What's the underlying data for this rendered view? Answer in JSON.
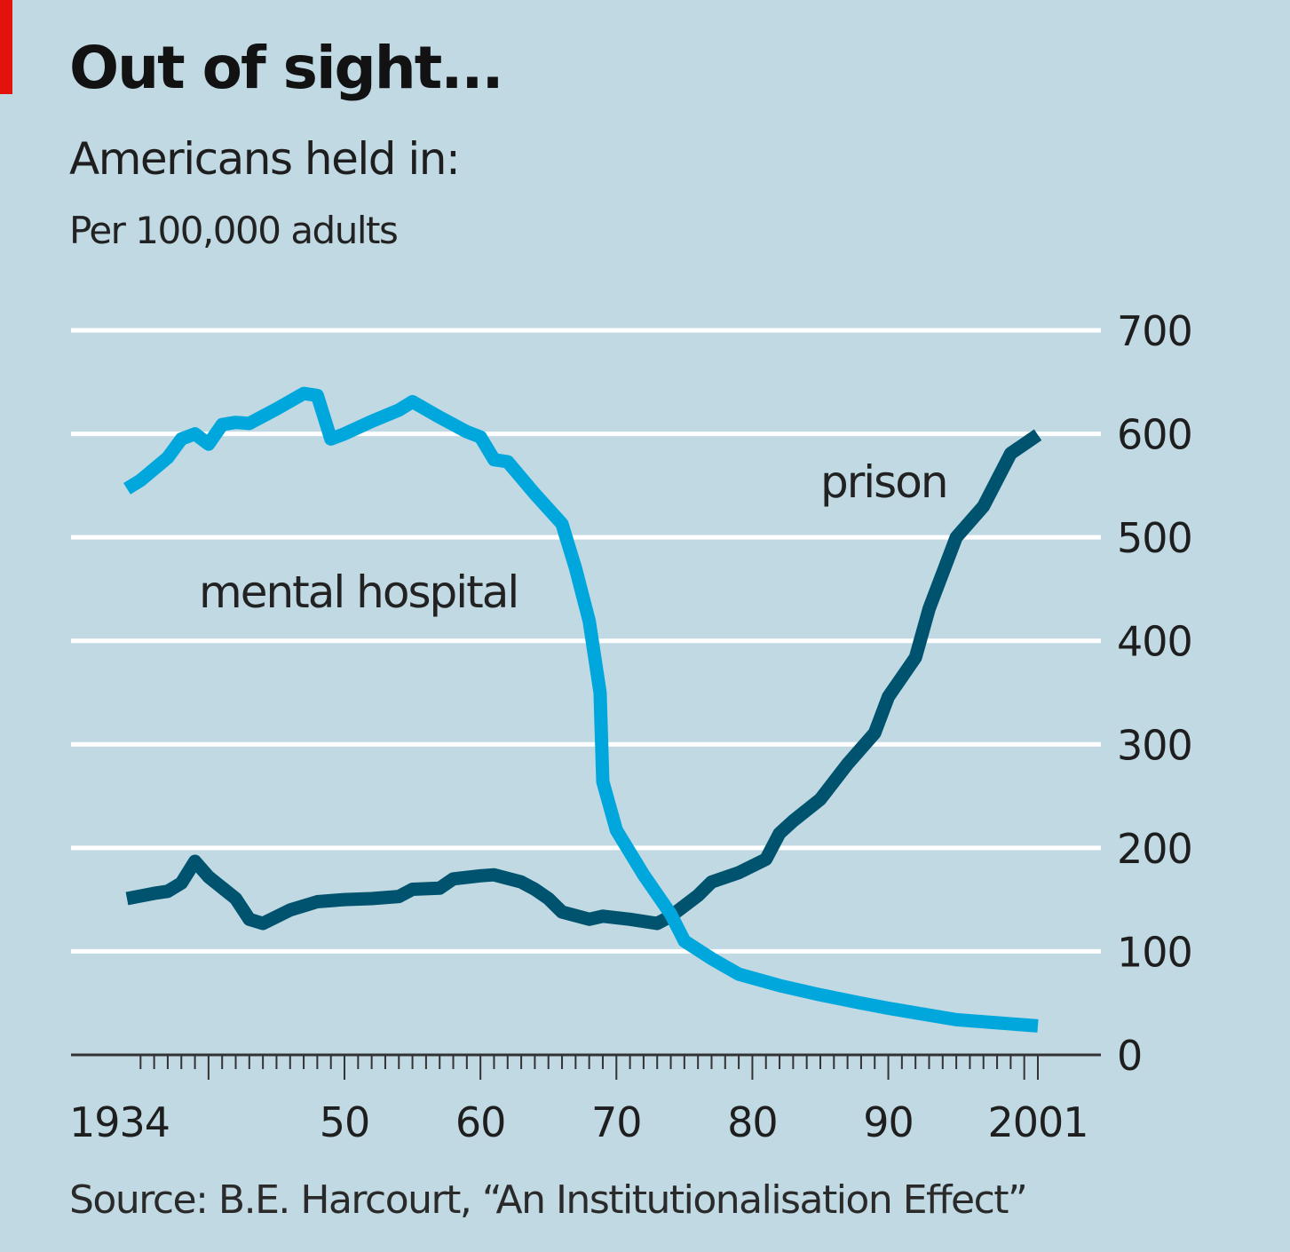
{
  "header": {
    "title": "Out of sight...",
    "subtitle": "Americans held in:",
    "unit": "Per 100,000 adults"
  },
  "footer": {
    "source": "Source: B.E. Harcourt, “An Institutionalisation Effect”"
  },
  "colors": {
    "background": "#c0d9e3",
    "gridline": "#ffffff",
    "accent_red": "#e3120b",
    "mental_hospital": "#00a7dc",
    "prison": "#00536e"
  },
  "chart_data": {
    "type": "line",
    "title": "Out of sight...",
    "subtitle": "Americans held in: Per 100,000 adults",
    "xlabel": "",
    "ylabel": "Per 100,000 adults",
    "xlim": [
      1934,
      2001
    ],
    "ylim": [
      0,
      700
    ],
    "grid": true,
    "y_axis_side": "right",
    "x_ticks": [
      1934,
      1950,
      1960,
      1970,
      1980,
      1990,
      2001
    ],
    "x_tick_labels": [
      "1934",
      "50",
      "60",
      "70",
      "80",
      "90",
      "2001"
    ],
    "y_ticks": [
      0,
      100,
      200,
      300,
      400,
      500,
      600,
      700
    ],
    "y_tick_labels": [
      "0",
      "100",
      "200",
      "300",
      "400",
      "500",
      "600",
      "700"
    ],
    "legend": "inline labels",
    "series": [
      {
        "name": "mental hospital",
        "label_position": "center-left",
        "x": [
          1934,
          1935,
          1937,
          1938,
          1939,
          1940,
          1941,
          1942,
          1943,
          1945,
          1947,
          1948,
          1949,
          1950,
          1952,
          1954,
          1955,
          1957,
          1959,
          1960,
          1961,
          1962,
          1964,
          1966,
          1967,
          1968,
          1968.8,
          1969,
          1970,
          1972,
          1974,
          1975,
          1977,
          1979,
          1982,
          1985,
          1988,
          1990,
          1995,
          1998,
          2001
        ],
        "values": [
          547,
          555,
          577,
          595,
          600,
          590,
          609,
          611,
          610,
          624,
          639,
          637,
          595,
          600,
          612,
          623,
          631,
          616,
          602,
          597,
          575,
          573,
          542,
          513,
          470,
          419,
          350,
          264,
          217,
          174,
          136,
          110,
          93,
          78,
          67,
          58,
          50,
          45,
          34,
          31,
          28
        ]
      },
      {
        "name": "prison",
        "label_position": "top-right",
        "x": [
          1934,
          1936,
          1937,
          1938,
          1939,
          1940,
          1942,
          1943,
          1944,
          1946,
          1948,
          1950,
          1952,
          1954,
          1955,
          1957,
          1958,
          1960,
          1961,
          1963,
          1964,
          1965,
          1966,
          1968,
          1969,
          1971,
          1973,
          1974,
          1976,
          1977,
          1979,
          1981,
          1982,
          1983,
          1985,
          1987,
          1989,
          1990,
          1992,
          1993,
          1995,
          1997,
          1999,
          2001
        ],
        "values": [
          151,
          156,
          158,
          166,
          187,
          172,
          151,
          131,
          127,
          140,
          148,
          150,
          151,
          153,
          160,
          161,
          170,
          173,
          174,
          167,
          160,
          151,
          138,
          131,
          134,
          131,
          127,
          134,
          154,
          167,
          176,
          189,
          214,
          226,
          247,
          281,
          311,
          346,
          384,
          431,
          500,
          530,
          581,
          599
        ]
      }
    ]
  }
}
